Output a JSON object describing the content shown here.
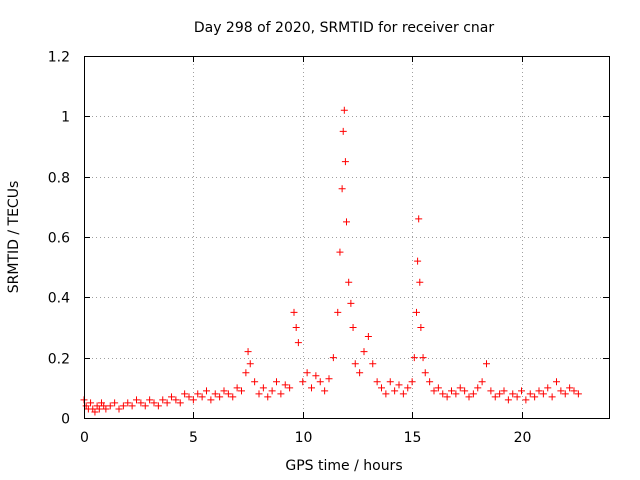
{
  "chart_data": {
    "type": "scatter",
    "title": "Day 298 of 2020, SRMTID for receiver cnar",
    "xlabel": "GPS time / hours",
    "ylabel": "SRMTID / TECUs",
    "xlim": [
      0,
      24
    ],
    "ylim": [
      0,
      1.2
    ],
    "grid": true,
    "marker": "+",
    "color": "#ff0000",
    "x_ticks": [
      0,
      5,
      10,
      15,
      20
    ],
    "x_tick_labels": [
      "0",
      "5",
      "10",
      "15",
      "20"
    ],
    "y_ticks": [
      0,
      0.2,
      0.4,
      0.6,
      0.8,
      1,
      1.2
    ],
    "y_tick_labels": [
      "0",
      "0.2",
      "0.4",
      "0.6",
      "0.8",
      "1",
      "1.2"
    ],
    "series": [
      {
        "name": "SRMTID",
        "x": [
          0.0,
          0.1,
          0.2,
          0.3,
          0.4,
          0.5,
          0.6,
          0.7,
          0.8,
          0.9,
          1.0,
          1.2,
          1.4,
          1.6,
          1.8,
          2.0,
          2.2,
          2.4,
          2.6,
          2.8,
          3.0,
          3.2,
          3.4,
          3.6,
          3.8,
          4.0,
          4.2,
          4.4,
          4.6,
          4.8,
          5.0,
          5.2,
          5.4,
          5.6,
          5.8,
          6.0,
          6.2,
          6.4,
          6.6,
          6.8,
          7.0,
          7.2,
          7.4,
          7.5,
          7.6,
          7.8,
          8.0,
          8.2,
          8.4,
          8.6,
          8.8,
          9.0,
          9.2,
          9.4,
          9.6,
          9.7,
          9.8,
          10.0,
          10.2,
          10.4,
          10.6,
          10.8,
          11.0,
          11.2,
          11.4,
          11.6,
          11.7,
          11.8,
          11.85,
          11.9,
          11.95,
          12.0,
          12.1,
          12.2,
          12.3,
          12.4,
          12.6,
          12.8,
          13.0,
          13.2,
          13.4,
          13.6,
          13.8,
          14.0,
          14.2,
          14.4,
          14.6,
          14.8,
          15.0,
          15.1,
          15.2,
          15.25,
          15.3,
          15.35,
          15.4,
          15.5,
          15.6,
          15.8,
          16.0,
          16.2,
          16.4,
          16.6,
          16.8,
          17.0,
          17.2,
          17.4,
          17.6,
          17.8,
          18.0,
          18.2,
          18.4,
          18.6,
          18.8,
          19.0,
          19.2,
          19.4,
          19.6,
          19.8,
          20.0,
          20.2,
          20.4,
          20.6,
          20.8,
          21.0,
          21.2,
          21.4,
          21.6,
          21.8,
          22.0,
          22.2,
          22.4,
          22.6
        ],
        "y": [
          0.06,
          0.04,
          0.03,
          0.05,
          0.03,
          0.02,
          0.04,
          0.03,
          0.05,
          0.04,
          0.03,
          0.04,
          0.05,
          0.03,
          0.04,
          0.05,
          0.04,
          0.06,
          0.05,
          0.04,
          0.06,
          0.05,
          0.04,
          0.06,
          0.05,
          0.07,
          0.06,
          0.05,
          0.08,
          0.07,
          0.06,
          0.08,
          0.07,
          0.09,
          0.06,
          0.08,
          0.07,
          0.09,
          0.08,
          0.07,
          0.1,
          0.09,
          0.15,
          0.22,
          0.18,
          0.12,
          0.08,
          0.1,
          0.07,
          0.09,
          0.12,
          0.08,
          0.11,
          0.1,
          0.35,
          0.3,
          0.25,
          0.12,
          0.15,
          0.1,
          0.14,
          0.12,
          0.09,
          0.13,
          0.2,
          0.35,
          0.55,
          0.76,
          0.95,
          1.02,
          0.85,
          0.65,
          0.45,
          0.38,
          0.3,
          0.18,
          0.15,
          0.22,
          0.27,
          0.18,
          0.12,
          0.1,
          0.08,
          0.12,
          0.09,
          0.11,
          0.08,
          0.1,
          0.12,
          0.2,
          0.35,
          0.52,
          0.66,
          0.45,
          0.3,
          0.2,
          0.15,
          0.12,
          0.09,
          0.1,
          0.08,
          0.07,
          0.09,
          0.08,
          0.1,
          0.09,
          0.07,
          0.08,
          0.1,
          0.12,
          0.18,
          0.09,
          0.07,
          0.08,
          0.09,
          0.06,
          0.08,
          0.07,
          0.09,
          0.06,
          0.08,
          0.07,
          0.09,
          0.08,
          0.1,
          0.07,
          0.12,
          0.09,
          0.08,
          0.1,
          0.09,
          0.08
        ]
      }
    ]
  }
}
